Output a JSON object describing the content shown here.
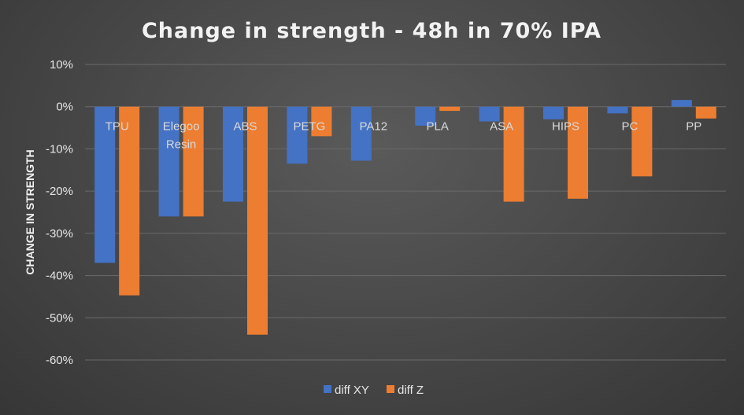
{
  "chart_data": {
    "type": "bar",
    "title": "Change in strength - 48h in 70% IPA",
    "xlabel": "",
    "ylabel": "CHANGE IN STRENGTH",
    "ylim": [
      -0.6,
      0.1
    ],
    "yticks": [
      0.1,
      0,
      -0.1,
      -0.2,
      -0.3,
      -0.4,
      -0.5,
      -0.6
    ],
    "ytick_labels": [
      "10%",
      "0%",
      "-10%",
      "-20%",
      "-30%",
      "-40%",
      "-50%",
      "-60%"
    ],
    "grid": true,
    "legend_position": "bottom",
    "categories": [
      "TPU",
      [
        "Elegoo",
        "Resin"
      ],
      "ABS",
      "PETG",
      "PA12",
      "PLA",
      "ASA",
      "HIPS",
      "PC",
      "PP"
    ],
    "series": [
      {
        "name": "diff XY",
        "color": "#4472c4",
        "values": [
          -0.37,
          -0.26,
          -0.225,
          -0.135,
          -0.128,
          -0.045,
          -0.035,
          -0.03,
          -0.016,
          0.016
        ]
      },
      {
        "name": "diff Z",
        "color": "#ed7d31",
        "values": [
          -0.447,
          -0.26,
          -0.54,
          -0.07,
          null,
          -0.01,
          -0.225,
          -0.218,
          -0.165,
          -0.028
        ]
      }
    ]
  }
}
